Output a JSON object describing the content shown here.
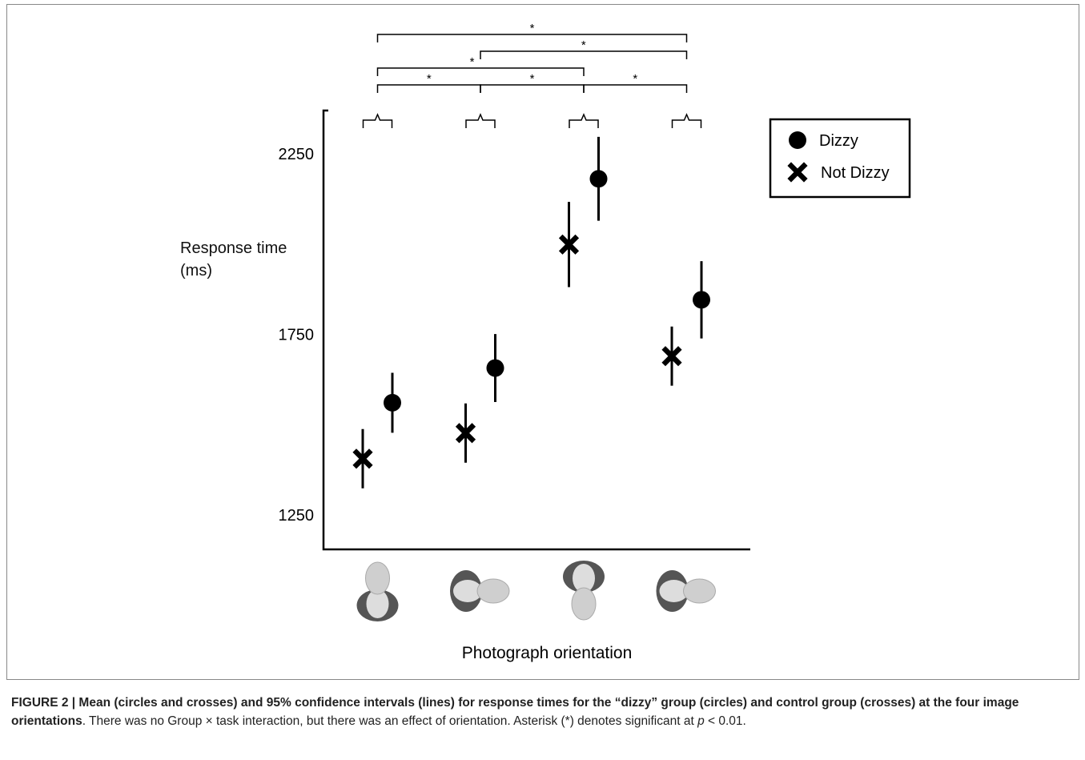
{
  "chart_data": {
    "type": "errorpoint",
    "ylabel": "Response time (ms)",
    "xlabel": "Photograph orientation",
    "categories": [
      null,
      null,
      null,
      null
    ],
    "ylim": [
      1155,
      2370
    ],
    "yticks": [
      1250,
      1750,
      2250
    ],
    "legend": "upper right",
    "series": [
      {
        "name": "Dizzy",
        "marker": "circle",
        "color": "#000000",
        "values": [
          1561,
          1657,
          2181,
          1846
        ],
        "errors": [
          83,
          94,
          116,
          107
        ]
      },
      {
        "name": "Not Dizzy",
        "marker": "cross",
        "color": "#000000",
        "values": [
          1406,
          1477,
          1999,
          1690
        ],
        "errors": [
          82,
          82,
          118,
          82
        ]
      }
    ],
    "significance": [
      {
        "from": 0,
        "to": 3,
        "label": "*"
      },
      {
        "from": 1,
        "to": 3,
        "label": "*"
      },
      {
        "from": 0,
        "to": 2,
        "label": "*"
      },
      {
        "from": 0,
        "to": 1,
        "label": "*"
      },
      {
        "from": 1,
        "to": 2,
        "label": "*"
      },
      {
        "from": 2,
        "to": 3,
        "label": "*"
      }
    ]
  },
  "caption": {
    "bold": "FIGURE 2 | Mean (circles and crosses) and 95% confidence intervals (lines) for response times for the “dizzy” group (circles) and control group (crosses) at the four image orientations",
    "text": ". There was no Group × task interaction, but there was an effect of orientation. Asterisk (*) denotes significant at ",
    "italic": "p",
    "end": " < 0.01."
  }
}
